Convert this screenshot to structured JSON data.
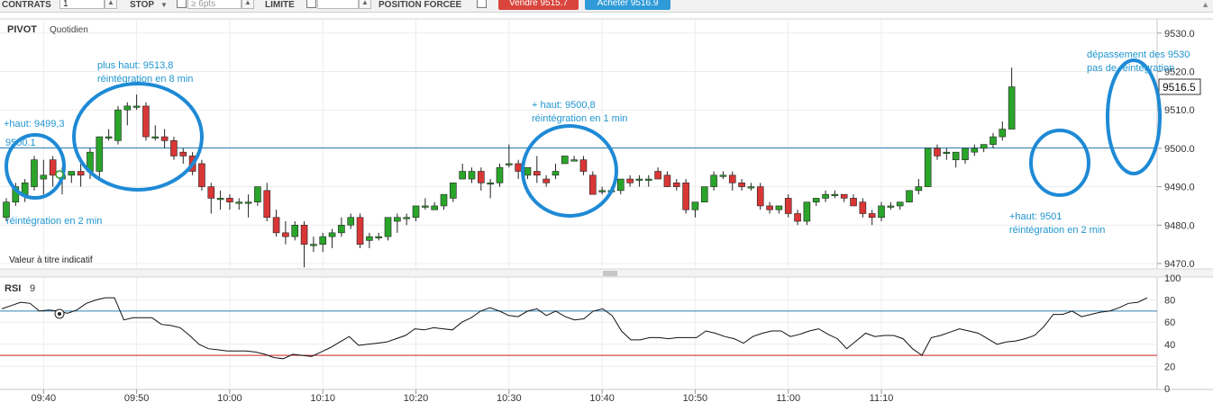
{
  "toolbar": {
    "contracts_label": "CONTRATS",
    "contracts_value": "1",
    "stop_label": "STOP",
    "stop_placeholder": "≥ 6pts",
    "limit_label": "LIMITE",
    "forced_label": "POSITION FORCÉE",
    "sell_label": "Vendre 9515.7",
    "buy_label": "Acheter 9516.9"
  },
  "colors": {
    "up": "#2aa52a",
    "down": "#d93636",
    "annotation": "#1f95d0",
    "ellipse": "#1e8ad6",
    "rsi_line": "#111111",
    "rsi_overbought": "#2f7fb0",
    "rsi_oversold": "#cc2020",
    "sell_button": "#d9453d",
    "buy_button": "#2f9bd8"
  },
  "price_panel": {
    "title": "PIVOT",
    "interval": "Quotidien",
    "disclaimer": "Valeur à titre indicatif",
    "last_price_label": "9516.5",
    "y_ticks": [
      "9530.0",
      "9520.0",
      "9510.0",
      "9500.0",
      "9490.0",
      "9480.0",
      "9470.0"
    ],
    "annotations": [
      {
        "text": "+haut: 9499,3"
      },
      {
        "text": "9500.1"
      },
      {
        "text": "réintégration en 2 min"
      },
      {
        "text": "plus haut: 9513,8"
      },
      {
        "text": "réintégration en 8 min"
      },
      {
        "text": "+ haut: 9500,8"
      },
      {
        "text": "réintégration en 1 min"
      },
      {
        "text": "+haut: 9501"
      },
      {
        "text": "réintégration en 2 min"
      },
      {
        "text": "dépassement des 9530"
      },
      {
        "text": "pas de réintégration"
      }
    ]
  },
  "rsi_panel": {
    "title": "RSI",
    "period": "9",
    "y_ticks": [
      "100",
      "80",
      "60",
      "40",
      "20",
      "0"
    ]
  },
  "x_ticks": [
    "09:40",
    "09:50",
    "10:00",
    "10:10",
    "10:20",
    "10:30",
    "10:40",
    "10:50",
    "11:00",
    "11:10"
  ],
  "chart_data": [
    {
      "type": "candlestick",
      "title": "PIVOT Quotidien",
      "interval_minutes": 1,
      "start_time": "09:36",
      "ylim": [
        9468,
        9533
      ],
      "reference_level": 9500.1,
      "candles": [
        {
          "o": 9482,
          "h": 9487,
          "l": 9481,
          "c": 9486
        },
        {
          "o": 9486,
          "h": 9491,
          "l": 9485,
          "c": 9490
        },
        {
          "o": 9488,
          "h": 9492,
          "l": 9486,
          "c": 9491
        },
        {
          "o": 9490,
          "h": 9498,
          "l": 9489,
          "c": 9497
        },
        {
          "o": 9492,
          "h": 9497,
          "l": 9488,
          "c": 9493
        },
        {
          "o": 9497,
          "h": 9498,
          "l": 9490,
          "c": 9493
        },
        {
          "o": 9492,
          "h": 9495,
          "l": 9488,
          "c": 9493
        },
        {
          "o": 9493,
          "h": 9494,
          "l": 9491,
          "c": 9494
        },
        {
          "o": 9494,
          "h": 9496,
          "l": 9490,
          "c": 9493
        },
        {
          "o": 9494,
          "h": 9500,
          "l": 9492,
          "c": 9499
        },
        {
          "o": 9494,
          "h": 9503,
          "l": 9492,
          "c": 9503
        },
        {
          "o": 9503,
          "h": 9505,
          "l": 9502,
          "c": 9503
        },
        {
          "o": 9502,
          "h": 9511,
          "l": 9501,
          "c": 9510
        },
        {
          "o": 9510,
          "h": 9512,
          "l": 9506,
          "c": 9511
        },
        {
          "o": 9511,
          "h": 9514,
          "l": 9510,
          "c": 9511
        },
        {
          "o": 9511,
          "h": 9512,
          "l": 9502,
          "c": 9503
        },
        {
          "o": 9503,
          "h": 9506,
          "l": 9502,
          "c": 9503
        },
        {
          "o": 9503,
          "h": 9505,
          "l": 9500,
          "c": 9502
        },
        {
          "o": 9502,
          "h": 9503,
          "l": 9497,
          "c": 9498
        },
        {
          "o": 9499,
          "h": 9500,
          "l": 9496,
          "c": 9498
        },
        {
          "o": 9498,
          "h": 9499,
          "l": 9493,
          "c": 9494
        },
        {
          "o": 9496,
          "h": 9497,
          "l": 9489,
          "c": 9490
        },
        {
          "o": 9490,
          "h": 9491,
          "l": 9483,
          "c": 9487
        },
        {
          "o": 9487,
          "h": 9489,
          "l": 9484,
          "c": 9487
        },
        {
          "o": 9487,
          "h": 9488,
          "l": 9484,
          "c": 9486
        },
        {
          "o": 9486,
          "h": 9487,
          "l": 9484,
          "c": 9486
        },
        {
          "o": 9486,
          "h": 9488,
          "l": 9482,
          "c": 9486
        },
        {
          "o": 9486,
          "h": 9490,
          "l": 9485,
          "c": 9490
        },
        {
          "o": 9489,
          "h": 9491,
          "l": 9481,
          "c": 9482
        },
        {
          "o": 9482,
          "h": 9484,
          "l": 9477,
          "c": 9478
        },
        {
          "o": 9478,
          "h": 9481,
          "l": 9475,
          "c": 9477
        },
        {
          "o": 9477,
          "h": 9481,
          "l": 9476,
          "c": 9480
        },
        {
          "o": 9480,
          "h": 9481,
          "l": 9469,
          "c": 9475
        },
        {
          "o": 9475,
          "h": 9477,
          "l": 9473,
          "c": 9475
        },
        {
          "o": 9475,
          "h": 9478,
          "l": 9473,
          "c": 9477
        },
        {
          "o": 9477,
          "h": 9479,
          "l": 9474,
          "c": 9478
        },
        {
          "o": 9478,
          "h": 9482,
          "l": 9477,
          "c": 9480
        },
        {
          "o": 9480,
          "h": 9483,
          "l": 9479,
          "c": 9482
        },
        {
          "o": 9482,
          "h": 9483,
          "l": 9474,
          "c": 9475
        },
        {
          "o": 9476,
          "h": 9478,
          "l": 9474,
          "c": 9477
        },
        {
          "o": 9477,
          "h": 9478,
          "l": 9476,
          "c": 9477
        },
        {
          "o": 9477,
          "h": 9482,
          "l": 9476,
          "c": 9482
        },
        {
          "o": 9481,
          "h": 9483,
          "l": 9478,
          "c": 9482
        },
        {
          "o": 9482,
          "h": 9483,
          "l": 9480,
          "c": 9482
        },
        {
          "o": 9482,
          "h": 9485,
          "l": 9481,
          "c": 9485
        },
        {
          "o": 9485,
          "h": 9487,
          "l": 9484,
          "c": 9485
        },
        {
          "o": 9484,
          "h": 9486,
          "l": 9484,
          "c": 9485
        },
        {
          "o": 9485,
          "h": 9488,
          "l": 9484,
          "c": 9488
        },
        {
          "o": 9487,
          "h": 9491,
          "l": 9486,
          "c": 9491
        },
        {
          "o": 9492,
          "h": 9496,
          "l": 9492,
          "c": 9494
        },
        {
          "o": 9492,
          "h": 9495,
          "l": 9491,
          "c": 9494
        },
        {
          "o": 9494,
          "h": 9495,
          "l": 9489,
          "c": 9491
        },
        {
          "o": 9491,
          "h": 9492,
          "l": 9487,
          "c": 9491
        },
        {
          "o": 9491,
          "h": 9496,
          "l": 9490,
          "c": 9495
        },
        {
          "o": 9496,
          "h": 9501,
          "l": 9495,
          "c": 9496
        },
        {
          "o": 9496,
          "h": 9497,
          "l": 9492,
          "c": 9494
        },
        {
          "o": 9493,
          "h": 9495,
          "l": 9492,
          "c": 9495
        },
        {
          "o": 9494,
          "h": 9498,
          "l": 9491,
          "c": 9493
        },
        {
          "o": 9492,
          "h": 9493,
          "l": 9490,
          "c": 9491
        },
        {
          "o": 9493,
          "h": 9496,
          "l": 9492,
          "c": 9494
        },
        {
          "o": 9496,
          "h": 9498,
          "l": 9496,
          "c": 9498
        },
        {
          "o": 9497,
          "h": 9498,
          "l": 9497,
          "c": 9497
        },
        {
          "o": 9497,
          "h": 9498,
          "l": 9493,
          "c": 9494
        },
        {
          "o": 9493,
          "h": 9494,
          "l": 9488,
          "c": 9488
        },
        {
          "o": 9489,
          "h": 9490,
          "l": 9488,
          "c": 9489
        },
        {
          "o": 9489,
          "h": 9490,
          "l": 9488,
          "c": 9489
        },
        {
          "o": 9489,
          "h": 9492,
          "l": 9488,
          "c": 9492
        },
        {
          "o": 9492,
          "h": 9493,
          "l": 9490,
          "c": 9491
        },
        {
          "o": 9492,
          "h": 9493,
          "l": 9490,
          "c": 9492
        },
        {
          "o": 9492,
          "h": 9493,
          "l": 9490,
          "c": 9492
        },
        {
          "o": 9494,
          "h": 9495,
          "l": 9492,
          "c": 9492
        },
        {
          "o": 9493,
          "h": 9494,
          "l": 9490,
          "c": 9490
        },
        {
          "o": 9491,
          "h": 9492,
          "l": 9489,
          "c": 9490
        },
        {
          "o": 9491,
          "h": 9492,
          "l": 9483,
          "c": 9484
        },
        {
          "o": 9484,
          "h": 9486,
          "l": 9482,
          "c": 9486
        },
        {
          "o": 9486,
          "h": 9490,
          "l": 9486,
          "c": 9490
        },
        {
          "o": 9490,
          "h": 9494,
          "l": 9489,
          "c": 9493
        },
        {
          "o": 9493,
          "h": 9494,
          "l": 9492,
          "c": 9493
        },
        {
          "o": 9493,
          "h": 9494,
          "l": 9489,
          "c": 9491
        },
        {
          "o": 9491,
          "h": 9492,
          "l": 9489,
          "c": 9490
        },
        {
          "o": 9490,
          "h": 9491,
          "l": 9489,
          "c": 9490
        },
        {
          "o": 9490,
          "h": 9491,
          "l": 9484,
          "c": 9485
        },
        {
          "o": 9485,
          "h": 9486,
          "l": 9483,
          "c": 9484
        },
        {
          "o": 9484,
          "h": 9485,
          "l": 9483,
          "c": 9485
        },
        {
          "o": 9487,
          "h": 9488,
          "l": 9482,
          "c": 9483
        },
        {
          "o": 9483,
          "h": 9484,
          "l": 9480,
          "c": 9481
        },
        {
          "o": 9481,
          "h": 9486,
          "l": 9480,
          "c": 9486
        },
        {
          "o": 9486,
          "h": 9487,
          "l": 9485,
          "c": 9487
        },
        {
          "o": 9487,
          "h": 9489,
          "l": 9486,
          "c": 9488
        },
        {
          "o": 9488,
          "h": 9489,
          "l": 9487,
          "c": 9488
        },
        {
          "o": 9488,
          "h": 9488,
          "l": 9486,
          "c": 9487
        },
        {
          "o": 9487,
          "h": 9488,
          "l": 9485,
          "c": 9485
        },
        {
          "o": 9486,
          "h": 9487,
          "l": 9482,
          "c": 9483
        },
        {
          "o": 9483,
          "h": 9484,
          "l": 9480,
          "c": 9482
        },
        {
          "o": 9482,
          "h": 9486,
          "l": 9481,
          "c": 9485
        },
        {
          "o": 9485,
          "h": 9486,
          "l": 9484,
          "c": 9485
        },
        {
          "o": 9485,
          "h": 9486,
          "l": 9484,
          "c": 9486
        },
        {
          "o": 9486,
          "h": 9489,
          "l": 9486,
          "c": 9489
        },
        {
          "o": 9489,
          "h": 9492,
          "l": 9488,
          "c": 9490
        },
        {
          "o": 9490,
          "h": 9500,
          "l": 9490,
          "c": 9500
        },
        {
          "o": 9500,
          "h": 9501,
          "l": 9497,
          "c": 9498
        },
        {
          "o": 9499,
          "h": 9500,
          "l": 9497,
          "c": 9499
        },
        {
          "o": 9497,
          "h": 9499,
          "l": 9495,
          "c": 9499
        },
        {
          "o": 9497,
          "h": 9500,
          "l": 9496,
          "c": 9500
        },
        {
          "o": 9499,
          "h": 9501,
          "l": 9498,
          "c": 9500
        },
        {
          "o": 9500,
          "h": 9501,
          "l": 9499,
          "c": 9501
        },
        {
          "o": 9501,
          "h": 9504,
          "l": 9500,
          "c": 9503
        },
        {
          "o": 9503,
          "h": 9507,
          "l": 9502,
          "c": 9505
        },
        {
          "o": 9505,
          "h": 9521,
          "l": 9505,
          "c": 9516
        }
      ]
    },
    {
      "type": "line",
      "title": "RSI 9",
      "start_time": "09:36",
      "interval_minutes": 1,
      "ylim": [
        0,
        100
      ],
      "reference_levels": [
        70,
        30
      ],
      "series": [
        {
          "values": [
            72,
            75,
            78,
            77,
            70,
            71,
            70,
            68,
            71,
            77,
            80,
            82,
            82,
            62,
            64,
            64,
            64,
            58,
            57,
            55,
            48,
            40,
            36,
            35,
            34,
            34,
            34,
            33,
            31,
            28,
            27,
            31,
            30,
            29,
            33,
            37,
            42,
            47,
            39,
            40,
            41,
            42,
            45,
            48,
            54,
            53,
            55,
            54,
            53,
            60,
            64,
            70,
            73,
            70,
            66,
            65,
            70,
            72,
            66,
            70,
            65,
            62,
            63,
            70,
            72,
            66,
            52,
            44,
            44,
            46,
            46,
            45,
            46,
            46,
            46,
            52,
            50,
            47,
            45,
            41,
            47,
            50,
            52,
            52,
            47,
            49,
            52,
            54,
            49,
            45,
            36,
            43,
            50,
            47,
            48,
            48,
            45,
            36,
            30,
            46,
            48,
            51,
            54,
            52,
            50,
            45,
            40,
            42,
            43,
            45,
            48,
            56,
            67,
            67,
            70,
            65,
            67,
            69,
            70,
            73,
            77,
            78,
            82
          ]
        }
      ]
    }
  ]
}
